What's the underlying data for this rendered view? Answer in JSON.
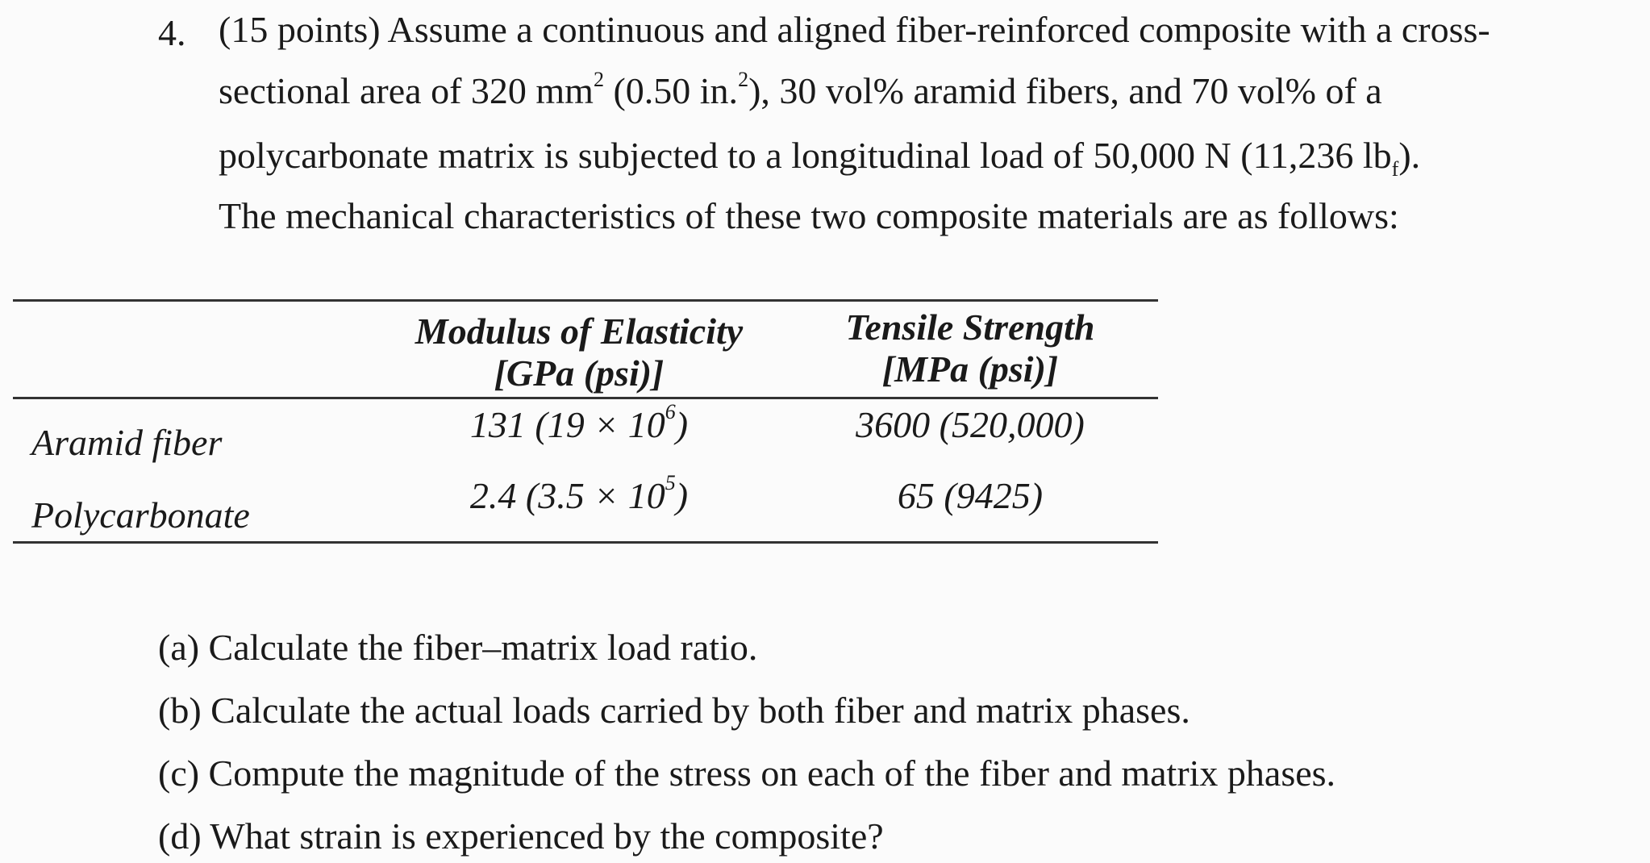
{
  "problem": {
    "number": "4.",
    "line1": "(15 points) Assume a continuous and aligned fiber-reinforced composite with a cross-",
    "line2a": "sectional area of 320 mm",
    "line2sup1": "2",
    "line2b": " (0.50 in.",
    "line2sup2": "2",
    "line2c": "), 30 vol% aramid fibers, and 70 vol% of a",
    "line3a": "polycarbonate matrix is subjected to a longitudinal load of 50,000 N (11,236 lb",
    "line3sub": "f",
    "line3b": ").",
    "line4": "The mechanical characteristics of these two composite  materials are as follows:"
  },
  "table": {
    "headers": [
      {
        "line1": "Modulus of Elasticity",
        "line2": "[GPa (psi)]"
      },
      {
        "line1": "Tensile Strength",
        "line2": "[MPa (psi)]"
      }
    ],
    "rows": [
      {
        "label": "Aramid fiber",
        "modulus": "131 (19 × 10",
        "modulus_exp": "6",
        "modulus_end": ")",
        "strength": "3600 (520,000)"
      },
      {
        "label": "Polycarbonate",
        "modulus": "2.4 (3.5 × 10",
        "modulus_exp": "5",
        "modulus_end": ")",
        "strength": "65 (9425)"
      }
    ]
  },
  "questions": [
    "(a) Calculate the fiber–matrix load ratio.",
    "(b) Calculate the actual loads carried by both fiber and matrix phases.",
    "(c) Compute the magnitude of the stress on each of the fiber and matrix phases.",
    "(d) What strain is experienced by the composite?"
  ]
}
